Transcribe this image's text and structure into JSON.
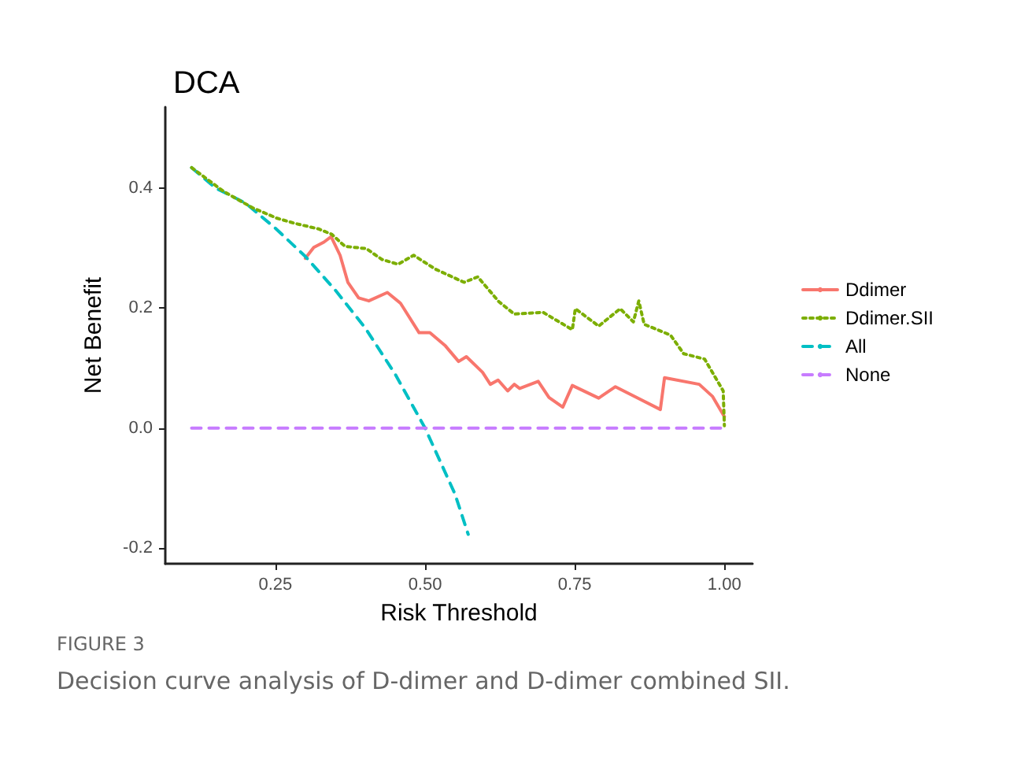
{
  "chart_data": {
    "type": "line",
    "title": "DCA",
    "xlabel": "Risk Threshold",
    "ylabel": "Net Benefit",
    "annotations": [
      "FIGURE 3",
      "Decision curve analysis of D-dimer and D-dimer combined SII."
    ],
    "xlim": [
      0.066,
      1.047
    ],
    "ylim": [
      -0.226,
      0.535
    ],
    "xticks": [
      0.25,
      {
        "value": 0.5,
        "label": "0.50"
      },
      0.75,
      {
        "value": 1,
        "label": "1.00"
      }
    ],
    "yticks": [
      {
        "value": -0.2,
        "label": "-0.2"
      },
      {
        "value": 0,
        "label": "0.0"
      },
      0.2,
      0.4
    ],
    "grid": false,
    "legend": "right",
    "marker": "none",
    "series": [
      {
        "name": "Ddimer",
        "color": "#f8766d",
        "line_style": "solid",
        "x": [
          0.3,
          0.314,
          0.331,
          0.343,
          0.358,
          0.371,
          0.389,
          0.406,
          0.437,
          0.459,
          0.49,
          0.508,
          0.534,
          0.556,
          0.569,
          0.596,
          0.609,
          0.622,
          0.638,
          0.649,
          0.658,
          0.689,
          0.707,
          0.73,
          0.746,
          0.79,
          0.818,
          0.893,
          0.9,
          0.958,
          0.98,
          1.0
        ],
        "values": [
          0.283,
          0.301,
          0.31,
          0.319,
          0.288,
          0.243,
          0.217,
          0.212,
          0.226,
          0.208,
          0.159,
          0.159,
          0.137,
          0.111,
          0.119,
          0.093,
          0.073,
          0.08,
          0.062,
          0.073,
          0.066,
          0.078,
          0.051,
          0.035,
          0.071,
          0.05,
          0.069,
          0.031,
          0.084,
          0.073,
          0.053,
          0.019
        ]
      },
      {
        "name": "Ddimer.SII",
        "color": "#7cae00",
        "line_style": "dotted",
        "x": [
          0.11,
          0.164,
          0.212,
          0.252,
          0.283,
          0.322,
          0.344,
          0.366,
          0.402,
          0.428,
          0.455,
          0.481,
          0.517,
          0.565,
          0.588,
          0.623,
          0.649,
          0.697,
          0.746,
          0.751,
          0.79,
          0.826,
          0.848,
          0.857,
          0.866,
          0.91,
          0.932,
          0.967,
          0.998,
          1.0
        ],
        "values": [
          0.434,
          0.394,
          0.367,
          0.35,
          0.341,
          0.332,
          0.323,
          0.303,
          0.299,
          0.281,
          0.273,
          0.288,
          0.265,
          0.243,
          0.252,
          0.211,
          0.19,
          0.193,
          0.164,
          0.199,
          0.17,
          0.199,
          0.177,
          0.212,
          0.173,
          0.155,
          0.124,
          0.115,
          0.062,
          0.004
        ]
      },
      {
        "name": "All",
        "color": "#00bfc4",
        "line_style": "dashed",
        "x": [
          0.11,
          0.15,
          0.2,
          0.25,
          0.3,
          0.35,
          0.4,
          0.45,
          0.5,
          0.55,
          0.572
        ],
        "values": [
          0.434,
          0.4,
          0.375,
          0.333,
          0.286,
          0.23,
          0.167,
          0.09,
          0.0,
          -0.11,
          -0.177
        ]
      },
      {
        "name": "None",
        "color": "#c77cff",
        "line_style": "dashed",
        "x": [
          0.11,
          1.0
        ],
        "values": [
          0,
          0
        ]
      }
    ]
  }
}
